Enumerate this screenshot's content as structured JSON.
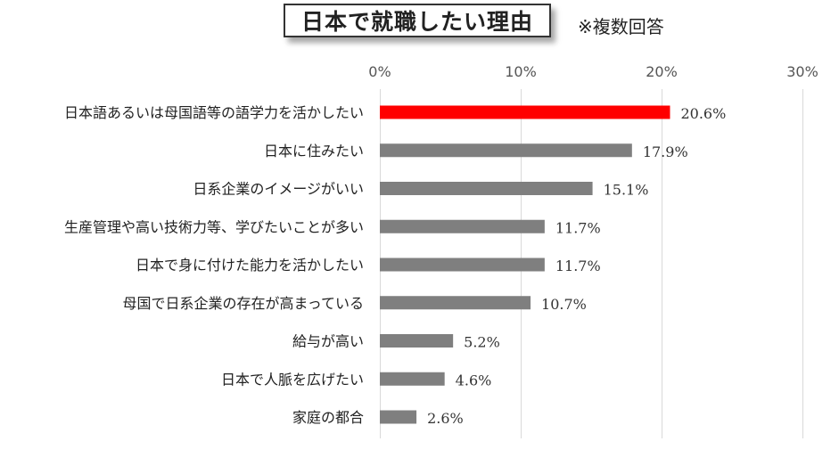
{
  "title": "日本で就職したい理由",
  "note": "※複数回答",
  "colors": {
    "highlight": "#ff0000",
    "bar": "#7f7f7f",
    "grid": "#d9d9d9"
  },
  "chart_data": {
    "type": "bar",
    "orientation": "horizontal",
    "title": "日本で就職したい理由",
    "xlim": [
      0,
      30
    ],
    "ticks": [
      0,
      10,
      20,
      30
    ],
    "tick_labels": [
      "0%",
      "10%",
      "20%",
      "30%"
    ],
    "grid": true,
    "categories": [
      "日本語あるいは母国語等の語学力を活かしたい",
      "日本に住みたい",
      "日系企業のイメージがいい",
      "生産管理や高い技術力等、学びたいことが多い",
      "日本で身に付けた能力を活かしたい",
      "母国で日系企業の存在が高まっている",
      "給与が高い",
      "日本で人脈を広げたい",
      "家庭の都合"
    ],
    "values": [
      20.6,
      17.9,
      15.1,
      11.7,
      11.7,
      10.7,
      5.2,
      4.6,
      2.6
    ],
    "labels": [
      "20.6%",
      "17.9%",
      "15.1%",
      "11.7%",
      "11.7%",
      "10.7%",
      "5.2%",
      "4.6%",
      "2.6%"
    ],
    "highlight_index": 0
  }
}
